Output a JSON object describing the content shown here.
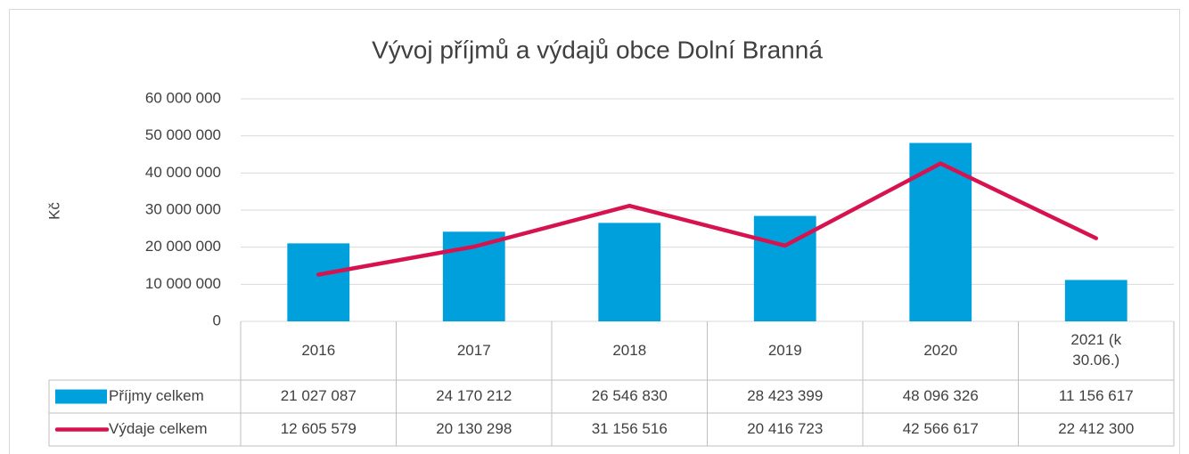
{
  "chart_data": {
    "type": "bar",
    "title": "Vývoj příjmů a výdajů obce Dolní Branná",
    "y_label": "Kč",
    "categories": [
      "2016",
      "2017",
      "2018",
      "2019",
      "2020",
      "2021 (k 30.06.)"
    ],
    "series": [
      {
        "name": "Příjmy celkem",
        "type": "bar",
        "color": "#00a0dc",
        "values": [
          21027087,
          24170212,
          26546830,
          28423399,
          48096326,
          11156617
        ],
        "value_labels": [
          "21 027 087",
          "24 170 212",
          "26 546 830",
          "28 423 399",
          "48 096 326",
          "11 156 617"
        ]
      },
      {
        "name": "Výdaje celkem",
        "type": "line",
        "color": "#d6134f",
        "values": [
          12605579,
          20130298,
          31156516,
          20416723,
          42566617,
          22412300
        ],
        "value_labels": [
          "12 605 579",
          "20 130 298",
          "31 156 516",
          "20 416 723",
          "42 566 617",
          "22 412 300"
        ]
      }
    ],
    "ylim": [
      0,
      60000000
    ],
    "yticks": [
      0,
      {
        "value": 10000000,
        "label": "10 000 000"
      },
      {
        "value": 20000000,
        "label": "20 000 000"
      },
      {
        "value": 30000000,
        "label": "30 000 000"
      },
      {
        "value": 40000000,
        "label": "40 000 000"
      },
      {
        "value": 50000000,
        "label": "50 000 000"
      },
      {
        "value": 60000000,
        "label": "60 000 000"
      }
    ],
    "grid": true,
    "data_table": true
  }
}
